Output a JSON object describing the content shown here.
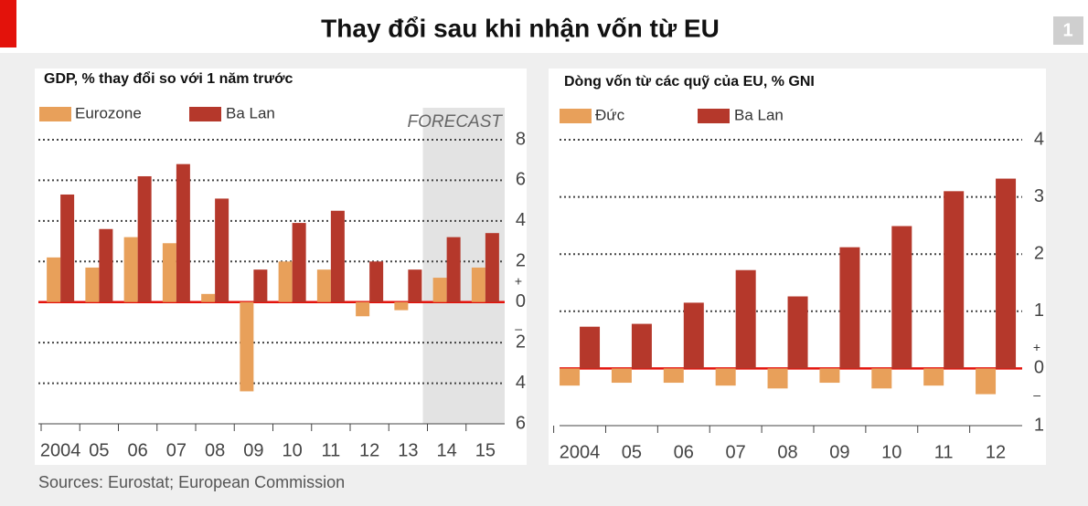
{
  "title": "Thay đổi sau khi nhận vốn từ EU",
  "badge": "1",
  "source": "Sources: Eurostat; European Commission",
  "chart_data": [
    {
      "type": "bar",
      "title": "GDP, % thay đổi so với 1 năm trước",
      "categories": [
        "2004",
        "05",
        "06",
        "07",
        "08",
        "09",
        "10",
        "11",
        "12",
        "13",
        "14",
        "15"
      ],
      "series": [
        {
          "name": "Eurozone",
          "color": "#e8a05a",
          "values": [
            2.2,
            1.7,
            3.2,
            2.9,
            0.4,
            -4.4,
            2.0,
            1.6,
            -0.7,
            -0.4,
            1.2,
            1.7
          ]
        },
        {
          "name": "Ba Lan",
          "color": "#b5382b",
          "values": [
            5.3,
            3.6,
            6.2,
            6.8,
            5.1,
            1.6,
            3.9,
            4.5,
            2.0,
            1.6,
            3.2,
            3.4
          ]
        }
      ],
      "ylim": [
        -6,
        8
      ],
      "yticks": [
        {
          "value": -6,
          "label": "6"
        },
        {
          "value": -4,
          "label": "4"
        },
        {
          "value": -2,
          "label": "2"
        },
        0,
        2,
        4,
        6,
        8
      ],
      "axis_signs": [
        "+",
        "–"
      ],
      "forecast": {
        "label": "FORECAST",
        "from": "14"
      },
      "grid": true
    },
    {
      "type": "bar",
      "title": "Dòng vốn từ các quỹ của EU, % GNI",
      "categories": [
        "2004",
        "05",
        "06",
        "07",
        "08",
        "09",
        "10",
        "11",
        "12"
      ],
      "series": [
        {
          "name": "Đức",
          "color": "#e8a05a",
          "values": [
            -0.3,
            -0.25,
            -0.25,
            -0.3,
            -0.35,
            -0.25,
            -0.35,
            -0.3,
            -0.45
          ]
        },
        {
          "name": "Ba Lan",
          "color": "#b5382b",
          "values": [
            0.73,
            0.78,
            1.15,
            1.72,
            1.26,
            2.12,
            2.49,
            3.1,
            3.32
          ]
        }
      ],
      "ylim": [
        -1,
        4
      ],
      "yticks": [
        {
          "value": -1,
          "label": "1"
        },
        0,
        1,
        2,
        3,
        4
      ],
      "axis_signs": [
        "+",
        "–"
      ],
      "grid": true
    }
  ]
}
